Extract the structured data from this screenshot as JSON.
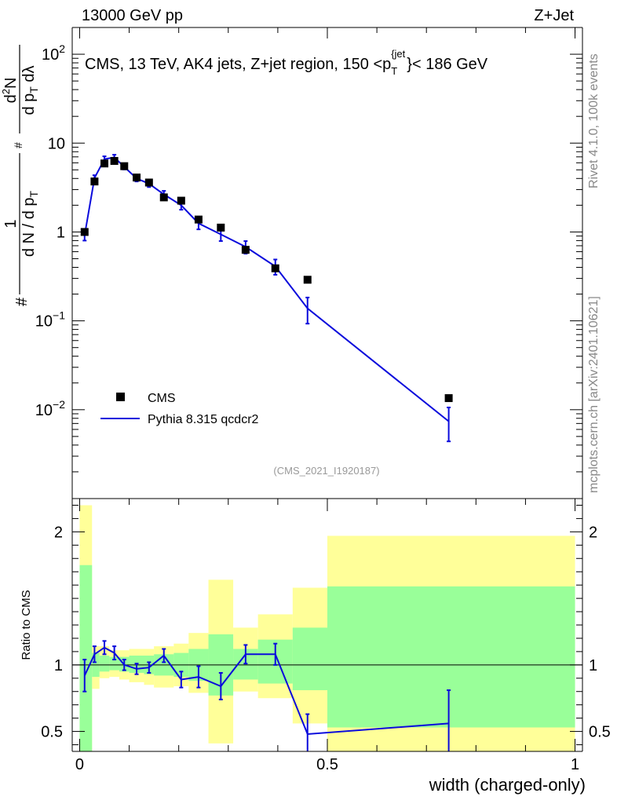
{
  "header": {
    "energy": "13000 GeV pp",
    "process": "Z+Jet"
  },
  "side_labels": {
    "rivet": "Rivet 4.1.0,  100k events",
    "source": "mcplots.cern.ch [arXiv:2401.10621]"
  },
  "colors": {
    "data": "#000000",
    "mc": "#0a0adc",
    "band_inner": "#99ff99",
    "band_outer": "#ffff99"
  },
  "chart_data": [
    {
      "type": "line",
      "title": "CMS, 13 TeV, AK4 jets, Z+jet region, 150 <p_T^{jet}< 186 GeV",
      "title_parts": {
        "main": "CMS, 13 TeV, AK4 jets, Z+jet region, 150 <p",
        "sub": "T",
        "sup": "{jet",
        "tail": "}< 186 GeV"
      },
      "ylabel": "1/(dN/dp_T) d^2N/(dp_T dλ)",
      "ylabel_parts": {
        "n1": "d",
        "n1sup": "2",
        "n2": "N",
        "d1": "d p",
        "dsub": "T",
        "d2": " dλ",
        "frac1": "1",
        "frac2": "d N / d p",
        "frac2sub": "T",
        "hash": "#"
      },
      "yscale": "log",
      "ylim": [
        0.001,
        200
      ],
      "xlim": [
        -0.015,
        1.015
      ],
      "yticks": [
        {
          "value": 0.01,
          "base": "10",
          "exp": "−2"
        },
        {
          "value": 0.1,
          "base": "10",
          "exp": "−1"
        },
        {
          "value": 1,
          "label": "1"
        },
        {
          "value": 10,
          "label": "10"
        },
        {
          "value": 100,
          "base": "10",
          "exp": "2"
        }
      ],
      "series": [
        {
          "name": "CMS",
          "style": "markers",
          "x": [
            0.01,
            0.03,
            0.05,
            0.07,
            0.09,
            0.115,
            0.14,
            0.17,
            0.205,
            0.24,
            0.285,
            0.335,
            0.395,
            0.46,
            0.745
          ],
          "y": [
            1.0,
            3.7,
            5.9,
            6.3,
            5.5,
            4.1,
            3.6,
            2.45,
            2.25,
            1.38,
            1.12,
            0.63,
            0.39,
            0.29,
            0.0135
          ]
        },
        {
          "name": "Pythia 8.315 qcdcr2",
          "style": "line",
          "x": [
            0.01,
            0.03,
            0.05,
            0.07,
            0.09,
            0.115,
            0.14,
            0.17,
            0.205,
            0.24,
            0.285,
            0.335,
            0.395,
            0.46,
            0.745
          ],
          "y": [
            0.92,
            4.05,
            6.6,
            6.9,
            5.4,
            4.0,
            3.5,
            2.65,
            2.0,
            1.25,
            0.94,
            0.68,
            0.41,
            0.138,
            0.0074
          ],
          "err_up": [
            0.12,
            0.3,
            0.5,
            0.5,
            0.35,
            0.3,
            0.3,
            0.25,
            0.22,
            0.18,
            0.15,
            0.11,
            0.08,
            0.045,
            0.0032
          ],
          "err_down": [
            0.12,
            0.3,
            0.5,
            0.5,
            0.35,
            0.3,
            0.3,
            0.25,
            0.22,
            0.18,
            0.15,
            0.11,
            0.08,
            0.045,
            0.003
          ]
        }
      ],
      "legend": {
        "position": "bottom-left",
        "entries": [
          "CMS",
          "Pythia 8.315 qcdcr2"
        ]
      },
      "annotation": "(CMS_2021_I1920187)"
    },
    {
      "type": "line",
      "ylabel": "Ratio to CMS",
      "xlabel": "width (charged-only)",
      "ylim": [
        0.35,
        2.25
      ],
      "xlim": [
        -0.015,
        1.015
      ],
      "yticks": [
        0.5,
        1,
        2
      ],
      "xticks": [
        0,
        0.5,
        1
      ],
      "reference_line": 1,
      "bands": [
        {
          "x0": 0.0,
          "x1": 0.025,
          "outer_lo": 0.35,
          "outer_hi": 2.2,
          "inner_lo": 0.35,
          "inner_hi": 1.75
        },
        {
          "x0": 0.025,
          "x1": 0.04,
          "outer_lo": 0.82,
          "outer_hi": 1.14,
          "inner_lo": 0.91,
          "inner_hi": 1.09
        },
        {
          "x0": 0.04,
          "x1": 0.06,
          "outer_lo": 0.9,
          "outer_hi": 1.14,
          "inner_lo": 0.95,
          "inner_hi": 1.07
        },
        {
          "x0": 0.06,
          "x1": 0.08,
          "outer_lo": 0.91,
          "outer_hi": 1.11,
          "inner_lo": 0.96,
          "inner_hi": 1.06
        },
        {
          "x0": 0.08,
          "x1": 0.1,
          "outer_lo": 0.89,
          "outer_hi": 1.11,
          "inner_lo": 0.95,
          "inner_hi": 1.06
        },
        {
          "x0": 0.1,
          "x1": 0.13,
          "outer_lo": 0.87,
          "outer_hi": 1.12,
          "inner_lo": 0.94,
          "inner_hi": 1.07
        },
        {
          "x0": 0.13,
          "x1": 0.15,
          "outer_lo": 0.85,
          "outer_hi": 1.12,
          "inner_lo": 0.93,
          "inner_hi": 1.07
        },
        {
          "x0": 0.15,
          "x1": 0.19,
          "outer_lo": 0.83,
          "outer_hi": 1.14,
          "inner_lo": 0.92,
          "inner_hi": 1.08
        },
        {
          "x0": 0.19,
          "x1": 0.22,
          "outer_lo": 0.84,
          "outer_hi": 1.16,
          "inner_lo": 0.91,
          "inner_hi": 1.09
        },
        {
          "x0": 0.22,
          "x1": 0.26,
          "outer_lo": 0.79,
          "outer_hi": 1.24,
          "inner_lo": 0.88,
          "inner_hi": 1.12
        },
        {
          "x0": 0.26,
          "x1": 0.31,
          "outer_lo": 0.41,
          "outer_hi": 1.64,
          "inner_lo": 0.77,
          "inner_hi": 1.23
        },
        {
          "x0": 0.31,
          "x1": 0.36,
          "outer_lo": 0.8,
          "outer_hi": 1.28,
          "inner_lo": 0.89,
          "inner_hi": 1.12
        },
        {
          "x0": 0.36,
          "x1": 0.43,
          "outer_lo": 0.75,
          "outer_hi": 1.38,
          "inner_lo": 0.86,
          "inner_hi": 1.19
        },
        {
          "x0": 0.43,
          "x1": 0.5,
          "outer_lo": 0.56,
          "outer_hi": 1.58,
          "inner_lo": 0.81,
          "inner_hi": 1.28
        },
        {
          "x0": 0.5,
          "x1": 1.0,
          "outer_lo": 0.35,
          "outer_hi": 1.97,
          "inner_lo": 0.53,
          "inner_hi": 1.59
        }
      ],
      "series": [
        {
          "name": "Pythia 8.315 qcdcr2 / CMS",
          "x": [
            0.01,
            0.03,
            0.05,
            0.07,
            0.09,
            0.115,
            0.14,
            0.17,
            0.205,
            0.24,
            0.285,
            0.335,
            0.395,
            0.46,
            0.745
          ],
          "y": [
            0.92,
            1.08,
            1.13,
            1.09,
            1.0,
            0.97,
            0.98,
            1.07,
            0.89,
            0.91,
            0.84,
            1.08,
            1.08,
            0.48,
            0.56
          ],
          "err_up": [
            0.12,
            0.06,
            0.05,
            0.05,
            0.04,
            0.04,
            0.04,
            0.05,
            0.06,
            0.08,
            0.1,
            0.07,
            0.08,
            0.15,
            0.25
          ],
          "err_down": [
            0.12,
            0.06,
            0.05,
            0.05,
            0.04,
            0.04,
            0.04,
            0.05,
            0.06,
            0.08,
            0.1,
            0.07,
            0.08,
            0.15,
            0.22
          ]
        }
      ]
    }
  ]
}
